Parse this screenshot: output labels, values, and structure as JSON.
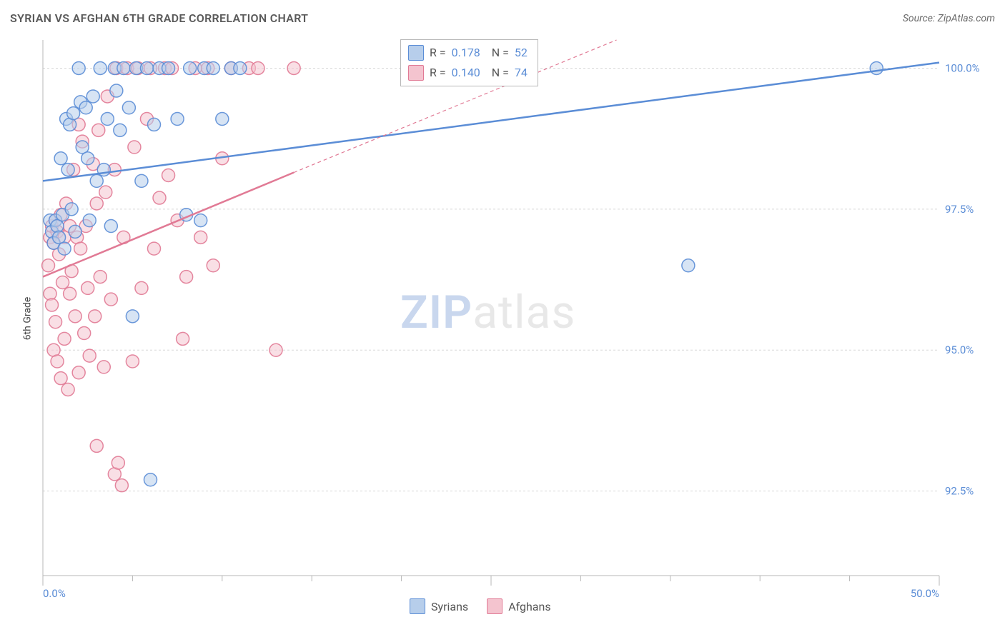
{
  "title": "SYRIAN VS AFGHAN 6TH GRADE CORRELATION CHART",
  "source_label": "Source: ZipAtlas.com",
  "ylabel": "6th Grade",
  "watermark": {
    "zip": "ZIP",
    "atlas": "atlas"
  },
  "chart": {
    "type": "scatter",
    "background_color": "#ffffff",
    "grid_color": "#d7d7d7",
    "axis_color": "#b7b7b7",
    "tick_label_color": "#5b8dd6",
    "tick_fontsize": 15,
    "x": {
      "min": 0.0,
      "max": 50.0,
      "ticks_major": [
        0.0,
        50.0
      ],
      "ticks_minor": [
        5,
        10,
        15,
        20,
        25,
        30,
        35,
        40,
        45
      ],
      "tick_labels": [
        "0.0%",
        "50.0%"
      ]
    },
    "y": {
      "min": 91.0,
      "max": 100.5,
      "ticks": [
        92.5,
        95.0,
        97.5,
        100.0
      ],
      "tick_labels": [
        "92.5%",
        "95.0%",
        "97.5%",
        "100.0%"
      ]
    },
    "marker": {
      "radius": 9,
      "stroke_width": 1.5,
      "opacity": 0.55
    },
    "series": [
      {
        "name": "Syrians",
        "color_fill": "#b7ceeb",
        "color_stroke": "#5b8dd6",
        "r": "0.178",
        "n": "52",
        "trend": {
          "solid": [
            [
              0.0,
              98.0
            ],
            [
              50.0,
              100.1
            ]
          ],
          "dashed": null,
          "stroke_width": 2.5,
          "dash": null
        },
        "points": [
          [
            0.4,
            97.3
          ],
          [
            0.5,
            97.1
          ],
          [
            0.6,
            96.9
          ],
          [
            0.7,
            97.3
          ],
          [
            0.8,
            97.2
          ],
          [
            0.9,
            97.0
          ],
          [
            1.0,
            98.4
          ],
          [
            1.1,
            97.4
          ],
          [
            1.2,
            96.8
          ],
          [
            1.3,
            99.1
          ],
          [
            1.4,
            98.2
          ],
          [
            1.5,
            99.0
          ],
          [
            1.6,
            97.5
          ],
          [
            1.7,
            99.2
          ],
          [
            1.8,
            97.1
          ],
          [
            2.0,
            100.0
          ],
          [
            2.1,
            99.4
          ],
          [
            2.2,
            98.6
          ],
          [
            2.4,
            99.3
          ],
          [
            2.5,
            98.4
          ],
          [
            2.6,
            97.3
          ],
          [
            2.8,
            99.5
          ],
          [
            3.0,
            98.0
          ],
          [
            3.2,
            100.0
          ],
          [
            3.4,
            98.2
          ],
          [
            3.6,
            99.1
          ],
          [
            3.8,
            97.2
          ],
          [
            4.0,
            100.0
          ],
          [
            4.1,
            99.6
          ],
          [
            4.3,
            98.9
          ],
          [
            4.5,
            100.0
          ],
          [
            4.8,
            99.3
          ],
          [
            5.0,
            95.6
          ],
          [
            5.2,
            100.0
          ],
          [
            5.5,
            98.0
          ],
          [
            5.8,
            100.0
          ],
          [
            6.0,
            92.7
          ],
          [
            6.2,
            99.0
          ],
          [
            6.5,
            100.0
          ],
          [
            7.0,
            100.0
          ],
          [
            7.5,
            99.1
          ],
          [
            8.0,
            97.4
          ],
          [
            8.2,
            100.0
          ],
          [
            8.8,
            97.3
          ],
          [
            9.0,
            100.0
          ],
          [
            9.5,
            100.0
          ],
          [
            10.0,
            99.1
          ],
          [
            10.5,
            100.0
          ],
          [
            11.0,
            100.0
          ],
          [
            27.0,
            100.0
          ],
          [
            36.0,
            96.5
          ],
          [
            46.5,
            100.0
          ]
        ]
      },
      {
        "name": "Afghans",
        "color_fill": "#f4c4cf",
        "color_stroke": "#e17a95",
        "r": "0.140",
        "n": "74",
        "trend": {
          "solid": [
            [
              0.0,
              96.3
            ],
            [
              14.0,
              98.15
            ]
          ],
          "dashed": [
            [
              14.0,
              98.15
            ],
            [
              32.0,
              100.5
            ]
          ],
          "stroke_width": 2.5,
          "dash": "5,4"
        },
        "points": [
          [
            0.3,
            96.5
          ],
          [
            0.4,
            97.0
          ],
          [
            0.4,
            96.0
          ],
          [
            0.5,
            97.2
          ],
          [
            0.5,
            95.8
          ],
          [
            0.6,
            96.9
          ],
          [
            0.6,
            95.0
          ],
          [
            0.7,
            97.3
          ],
          [
            0.7,
            95.5
          ],
          [
            0.8,
            97.1
          ],
          [
            0.8,
            94.8
          ],
          [
            0.9,
            96.7
          ],
          [
            1.0,
            97.4
          ],
          [
            1.0,
            94.5
          ],
          [
            1.1,
            96.2
          ],
          [
            1.2,
            97.0
          ],
          [
            1.2,
            95.2
          ],
          [
            1.3,
            97.6
          ],
          [
            1.4,
            94.3
          ],
          [
            1.5,
            97.2
          ],
          [
            1.5,
            96.0
          ],
          [
            1.6,
            96.4
          ],
          [
            1.7,
            98.2
          ],
          [
            1.8,
            95.6
          ],
          [
            1.9,
            97.0
          ],
          [
            2.0,
            99.0
          ],
          [
            2.0,
            94.6
          ],
          [
            2.1,
            96.8
          ],
          [
            2.2,
            98.7
          ],
          [
            2.3,
            95.3
          ],
          [
            2.4,
            97.2
          ],
          [
            2.5,
            96.1
          ],
          [
            2.6,
            94.9
          ],
          [
            2.8,
            98.3
          ],
          [
            2.9,
            95.6
          ],
          [
            3.0,
            97.6
          ],
          [
            3.0,
            93.3
          ],
          [
            3.1,
            98.9
          ],
          [
            3.2,
            96.3
          ],
          [
            3.4,
            94.7
          ],
          [
            3.5,
            97.8
          ],
          [
            3.6,
            99.5
          ],
          [
            3.8,
            95.9
          ],
          [
            4.0,
            92.8
          ],
          [
            4.0,
            98.2
          ],
          [
            4.1,
            100.0
          ],
          [
            4.2,
            93.0
          ],
          [
            4.4,
            92.6
          ],
          [
            4.5,
            97.0
          ],
          [
            4.7,
            100.0
          ],
          [
            5.0,
            94.8
          ],
          [
            5.1,
            98.6
          ],
          [
            5.3,
            100.0
          ],
          [
            5.5,
            96.1
          ],
          [
            5.8,
            99.1
          ],
          [
            6.0,
            100.0
          ],
          [
            6.2,
            96.8
          ],
          [
            6.5,
            97.7
          ],
          [
            6.8,
            100.0
          ],
          [
            7.0,
            98.1
          ],
          [
            7.2,
            100.0
          ],
          [
            7.5,
            97.3
          ],
          [
            7.8,
            95.2
          ],
          [
            8.0,
            96.3
          ],
          [
            8.5,
            100.0
          ],
          [
            8.8,
            97.0
          ],
          [
            9.2,
            100.0
          ],
          [
            9.5,
            96.5
          ],
          [
            10.0,
            98.4
          ],
          [
            10.5,
            100.0
          ],
          [
            11.5,
            100.0
          ],
          [
            12.0,
            100.0
          ],
          [
            13.0,
            95.0
          ],
          [
            14.0,
            100.0
          ]
        ]
      }
    ],
    "bottom_legend": [
      {
        "label": "Syrians",
        "fill": "#b7ceeb",
        "stroke": "#5b8dd6"
      },
      {
        "label": "Afghans",
        "fill": "#f4c4cf",
        "stroke": "#e17a95"
      }
    ]
  }
}
